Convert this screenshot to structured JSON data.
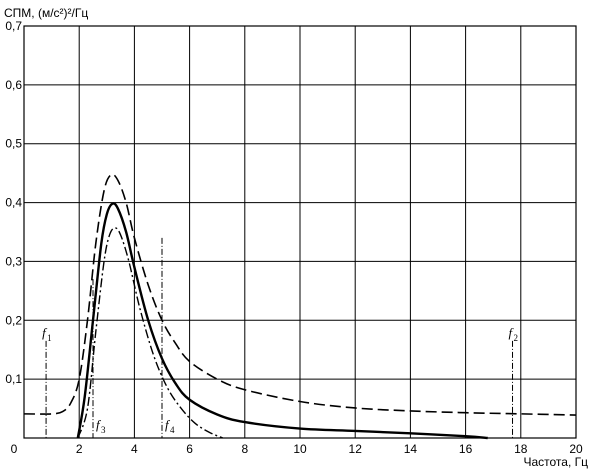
{
  "chart_data": {
    "type": "line",
    "ylabel": "СПМ, (м/с²)²/Гц",
    "xlabel": "Частота, Гц",
    "xlim": [
      0,
      20
    ],
    "ylim": [
      0,
      0.7
    ],
    "x_ticks": [
      "0",
      "2",
      "4",
      "6",
      "8",
      "10",
      "12",
      "14",
      "16",
      "18",
      "20"
    ],
    "y_ticks": [
      "0,1",
      "0,2",
      "0,3",
      "0,4",
      "0,5",
      "0,6",
      "0,7"
    ],
    "grid": true,
    "series": [
      {
        "style": "solid",
        "points": [
          [
            1.95,
            0
          ],
          [
            2.2,
            0.07
          ],
          [
            2.5,
            0.2
          ],
          [
            2.8,
            0.33
          ],
          [
            3.0,
            0.38
          ],
          [
            3.2,
            0.398
          ],
          [
            3.4,
            0.39
          ],
          [
            3.7,
            0.35
          ],
          [
            4.0,
            0.29
          ],
          [
            4.5,
            0.2
          ],
          [
            5.0,
            0.135
          ],
          [
            5.5,
            0.092
          ],
          [
            6.0,
            0.065
          ],
          [
            7.0,
            0.04
          ],
          [
            8.0,
            0.027
          ],
          [
            10.0,
            0.016
          ],
          [
            12.0,
            0.012
          ],
          [
            14.0,
            0.008
          ],
          [
            16.0,
            0.003
          ],
          [
            16.8,
            0.0
          ]
        ]
      },
      {
        "style": "dashed",
        "points": [
          [
            0,
            0.041
          ],
          [
            1.0,
            0.041
          ],
          [
            1.4,
            0.045
          ],
          [
            1.7,
            0.06
          ],
          [
            2.0,
            0.1
          ],
          [
            2.3,
            0.2
          ],
          [
            2.6,
            0.33
          ],
          [
            2.9,
            0.42
          ],
          [
            3.15,
            0.447
          ],
          [
            3.4,
            0.438
          ],
          [
            3.7,
            0.4
          ],
          [
            4.0,
            0.34
          ],
          [
            4.5,
            0.26
          ],
          [
            5.0,
            0.2
          ],
          [
            5.5,
            0.16
          ],
          [
            6.0,
            0.13
          ],
          [
            7.0,
            0.1
          ],
          [
            8.0,
            0.082
          ],
          [
            10.0,
            0.062
          ],
          [
            12.0,
            0.051
          ],
          [
            14.0,
            0.046
          ],
          [
            16.0,
            0.043
          ],
          [
            18.0,
            0.041
          ],
          [
            20.0,
            0.039
          ]
        ]
      },
      {
        "style": "dash-dot",
        "points": [
          [
            1.95,
            0
          ],
          [
            2.3,
            0.05
          ],
          [
            2.6,
            0.18
          ],
          [
            2.9,
            0.3
          ],
          [
            3.1,
            0.345
          ],
          [
            3.3,
            0.357
          ],
          [
            3.5,
            0.345
          ],
          [
            3.8,
            0.3
          ],
          [
            4.2,
            0.22
          ],
          [
            4.7,
            0.14
          ],
          [
            5.2,
            0.085
          ],
          [
            5.7,
            0.05
          ],
          [
            6.2,
            0.025
          ],
          [
            6.7,
            0.01
          ],
          [
            7.2,
            0.0
          ]
        ]
      }
    ],
    "markers": [
      {
        "label": "f",
        "sub": "1",
        "x": 0.8,
        "y_top": 0.165,
        "label_pos": "top"
      },
      {
        "label": "f",
        "sub": "3",
        "x": 2.5,
        "y_top": 0.27,
        "label_pos": "bottom"
      },
      {
        "label": "f",
        "sub": "4",
        "x": 5.0,
        "y_top": 0.34,
        "label_pos": "bottom"
      },
      {
        "label": "f",
        "sub": "2",
        "x": 17.7,
        "y_top": 0.165,
        "label_pos": "top"
      }
    ]
  }
}
